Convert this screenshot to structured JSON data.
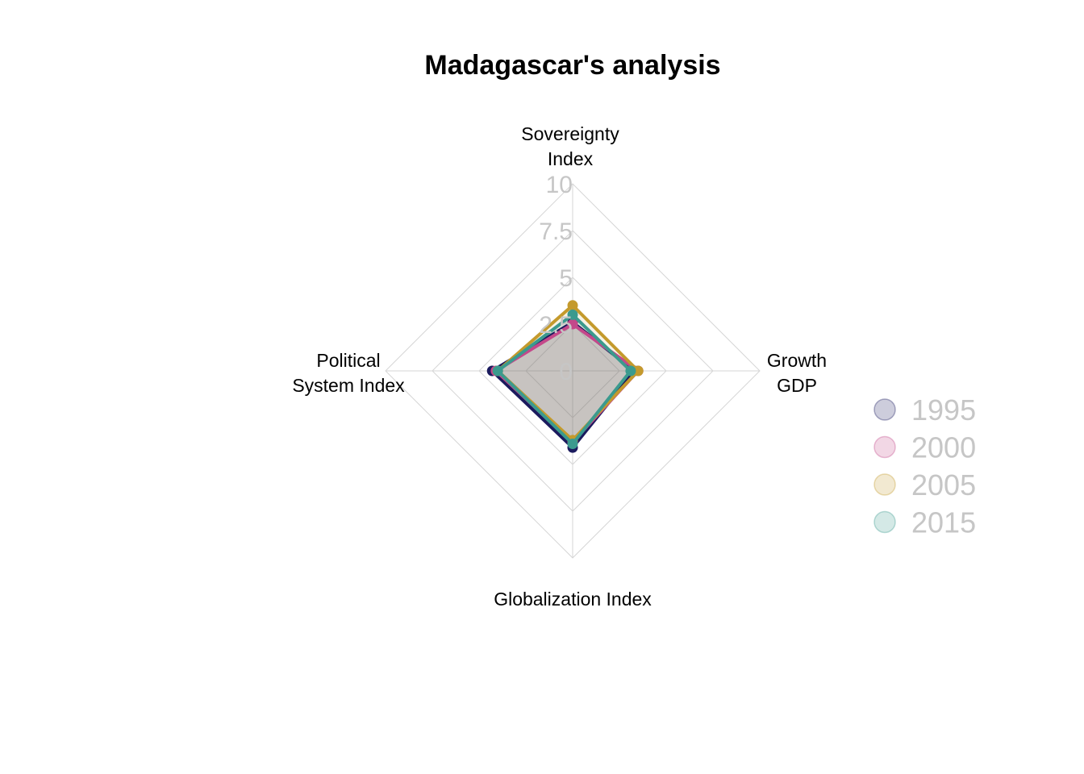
{
  "chart_data": {
    "type": "radar",
    "title": "Madagascar's analysis",
    "axes": [
      {
        "label_lines": [
          "Sovereignty",
          "Index"
        ]
      },
      {
        "label_lines": [
          "Growth",
          "GDP"
        ]
      },
      {
        "label_lines": [
          "Globalization Index"
        ]
      },
      {
        "label_lines": [
          "Political",
          "System Index"
        ]
      }
    ],
    "ticks": [
      "0",
      "2.5",
      "5",
      "7.5",
      "10"
    ],
    "range": [
      0,
      10
    ],
    "legend_position": "right",
    "series": [
      {
        "name": "1995",
        "color": "#1b1b5e",
        "values": [
          2.6,
          3.3,
          4.1,
          4.3
        ]
      },
      {
        "name": "2000",
        "color": "#c4488a",
        "values": [
          2.5,
          3.5,
          3.8,
          4.1
        ]
      },
      {
        "name": "2005",
        "color": "#c49a2c",
        "values": [
          3.5,
          3.5,
          3.7,
          4.0
        ]
      },
      {
        "name": "2015",
        "color": "#3b9a8e",
        "values": [
          3.0,
          3.1,
          3.9,
          4.0
        ]
      }
    ]
  }
}
